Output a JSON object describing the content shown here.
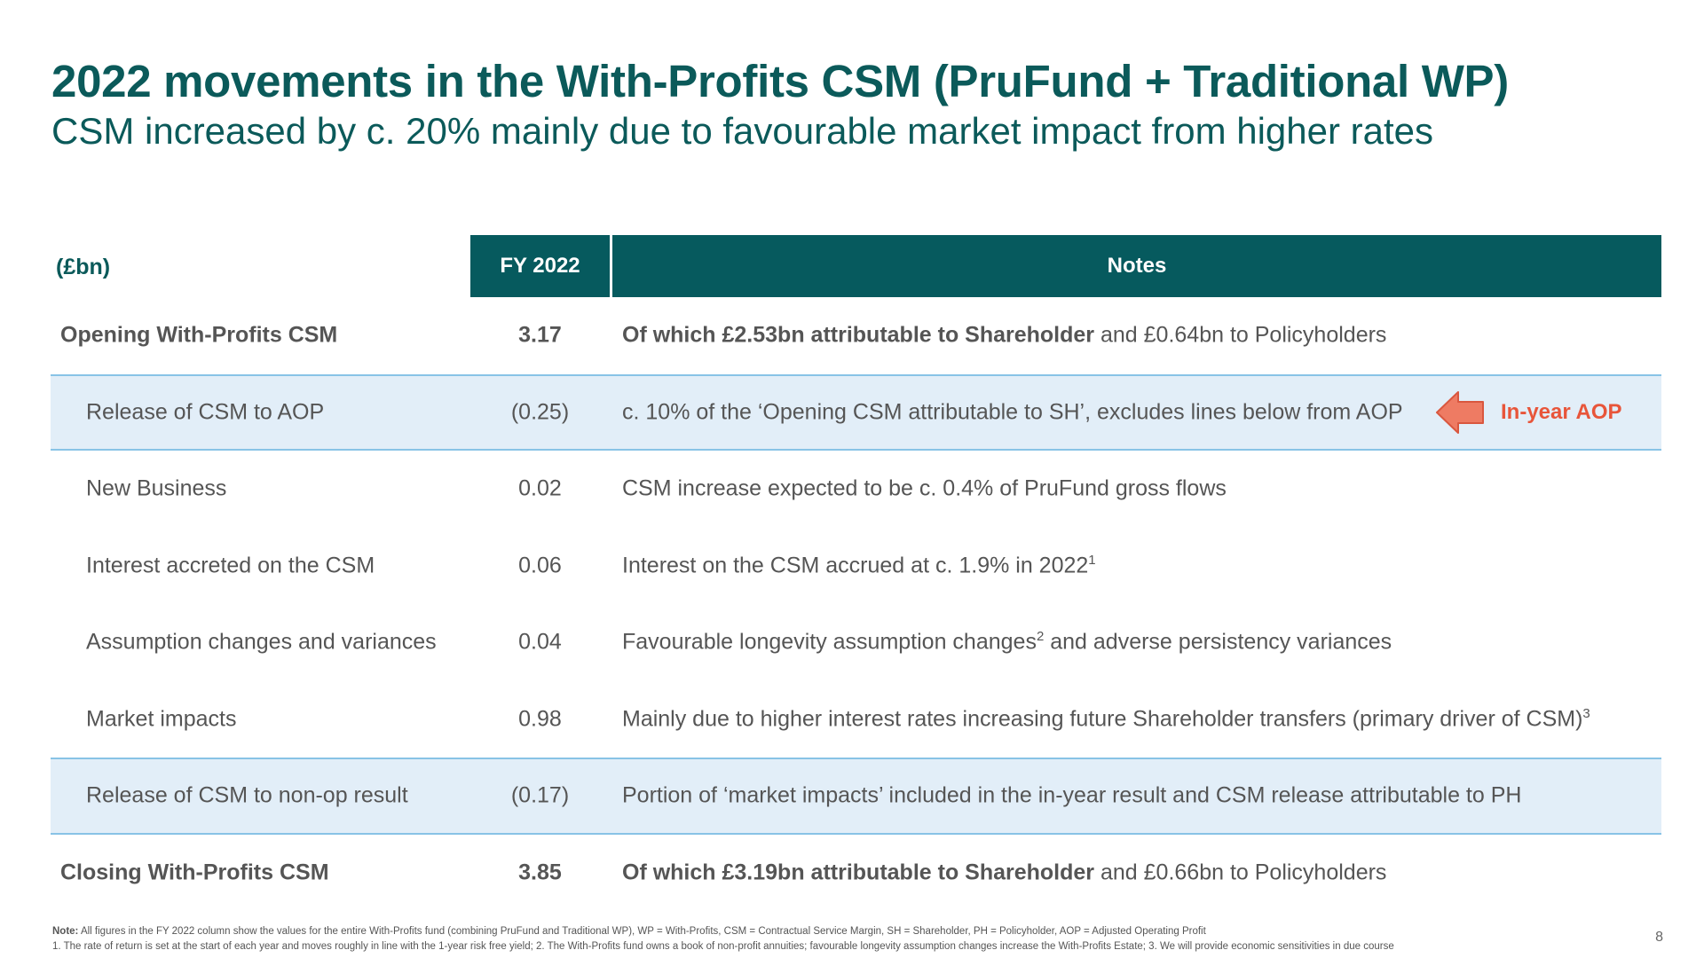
{
  "title": "2022 movements in the With-Profits CSM (PruFund + Traditional WP)",
  "subtitle": "CSM increased by c. 20% mainly due to favourable market impact from higher rates",
  "table": {
    "header": {
      "unit": "(£bn)",
      "fy": "FY 2022",
      "notes": "Notes"
    },
    "rows": [
      {
        "label": "Opening With-Profits CSM",
        "value": "3.17",
        "note_bold": "Of which £2.53bn attributable to Shareholder",
        "note": " and £0.64bn to Policyholders",
        "sup": ""
      },
      {
        "label": "Release of CSM to AOP",
        "value": "(0.25)",
        "note_bold": "",
        "note": "c. 10% of the ‘Opening CSM attributable to SH’, excludes lines below from AOP",
        "sup": ""
      },
      {
        "label": "New Business",
        "value": "0.02",
        "note_bold": "",
        "note": "CSM increase expected to be c. 0.4% of PruFund gross flows",
        "sup": ""
      },
      {
        "label": "Interest accreted on the CSM",
        "value": "0.06",
        "note_bold": "",
        "note": "Interest on the CSM accrued at c. 1.9% in 2022",
        "sup": "1"
      },
      {
        "label": "Assumption changes and variances",
        "value": "0.04",
        "note_bold": "",
        "note": "Favourable longevity assumption changes",
        "sup": "2",
        "note_after": " and adverse persistency variances"
      },
      {
        "label": "Market impacts",
        "value": "0.98",
        "note_bold": "",
        "note": "Mainly due to higher interest rates increasing future Shareholder transfers (primary driver of CSM)",
        "sup": "3"
      },
      {
        "label": "Release of CSM to non-op result",
        "value": "(0.17)",
        "note_bold": "",
        "note": "Portion of ‘market impacts’ included in the in-year result and CSM release attributable to PH",
        "sup": ""
      },
      {
        "label": "Closing With-Profits CSM",
        "value": "3.85",
        "note_bold": "Of which £3.19bn attributable to Shareholder",
        "note": " and £0.66bn to Policyholders",
        "sup": ""
      }
    ],
    "callout": {
      "label": "In-year AOP",
      "icon": "arrow-left-icon",
      "color": "#e8553a"
    }
  },
  "footnotes": {
    "note_label": "Note:",
    "note_text": " All figures in the FY 2022 column show the values for the entire With-Profits fund (combining PruFund and Traditional WP),  WP = With-Profits,  CSM = Contractual Service Margin,  SH = Shareholder,  PH = Policyholder,  AOP = Adjusted Operating Profit",
    "line2": "1. The rate of return is set at the start of each year and moves roughly in line with the 1-year risk free yield;  2. The With-Profits fund owns a book of non-profit annuities; favourable longevity assumption changes increase the With-Profits Estate;  3. We will provide economic sensitivities in due course"
  },
  "page_number": "8",
  "colors": {
    "brand_teal": "#065a5e",
    "shade": "#e2eef8",
    "accent": "#e8553a"
  }
}
